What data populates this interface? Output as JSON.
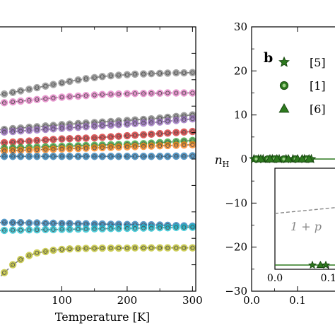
{
  "chart_data": [
    {
      "type": "line",
      "panel_label": "",
      "xlabel": "Temperature [K]",
      "ylabel": "",
      "xlim": [
        0,
        305
      ],
      "ylim": [
        0,
        1
      ],
      "x_ticks": [
        100,
        200,
        300
      ],
      "y_ticks": [],
      "grid": false,
      "line_style": "dashed-gray",
      "series": [
        {
          "color": "#888888",
          "x": [
            0,
            12,
            25,
            37,
            50,
            62,
            75,
            87,
            100,
            112,
            125,
            137,
            150,
            162,
            175,
            187,
            200,
            212,
            225,
            237,
            250,
            262,
            275,
            287,
            300
          ],
          "y": [
            0.74,
            0.746,
            0.752,
            0.758,
            0.764,
            0.77,
            0.776,
            0.782,
            0.788,
            0.794,
            0.799,
            0.804,
            0.808,
            0.812,
            0.815,
            0.817,
            0.819,
            0.821,
            0.822,
            0.823,
            0.824,
            0.825,
            0.826,
            0.826,
            0.827
          ]
        },
        {
          "color": "#e377c2",
          "x": [
            0,
            12,
            25,
            37,
            50,
            62,
            75,
            87,
            100,
            112,
            125,
            137,
            150,
            162,
            175,
            187,
            200,
            212,
            225,
            237,
            250,
            262,
            275,
            287,
            300
          ],
          "y": [
            0.71,
            0.713,
            0.716,
            0.719,
            0.722,
            0.725,
            0.728,
            0.731,
            0.734,
            0.736,
            0.738,
            0.74,
            0.742,
            0.744,
            0.745,
            0.746,
            0.747,
            0.748,
            0.748,
            0.749,
            0.749,
            0.75,
            0.75,
            0.75,
            0.75
          ]
        },
        {
          "color": "#7f7f7f",
          "x": [
            0,
            12,
            25,
            37,
            50,
            62,
            75,
            87,
            100,
            112,
            125,
            137,
            150,
            162,
            175,
            187,
            200,
            212,
            225,
            237,
            250,
            262,
            275,
            287,
            300
          ],
          "y": [
            0.61,
            0.612,
            0.615,
            0.617,
            0.62,
            0.622,
            0.625,
            0.627,
            0.63,
            0.632,
            0.634,
            0.636,
            0.638,
            0.64,
            0.642,
            0.644,
            0.646,
            0.648,
            0.65,
            0.652,
            0.655,
            0.658,
            0.661,
            0.664,
            0.667
          ]
        },
        {
          "color": "#9467bd",
          "x": [
            0,
            12,
            25,
            37,
            50,
            62,
            75,
            87,
            100,
            112,
            125,
            137,
            150,
            162,
            175,
            187,
            200,
            212,
            225,
            237,
            250,
            262,
            275,
            287,
            300
          ],
          "y": [
            0.6,
            0.602,
            0.604,
            0.606,
            0.608,
            0.61,
            0.612,
            0.614,
            0.616,
            0.618,
            0.62,
            0.622,
            0.624,
            0.626,
            0.628,
            0.63,
            0.632,
            0.634,
            0.636,
            0.638,
            0.64,
            0.643,
            0.646,
            0.649,
            0.652
          ]
        },
        {
          "color": "#d62728",
          "x": [
            0,
            12,
            25,
            37,
            50,
            62,
            75,
            87,
            100,
            112,
            125,
            137,
            150,
            162,
            175,
            187,
            200,
            212,
            225,
            237,
            250,
            262,
            275,
            287,
            300
          ],
          "y": [
            0.56,
            0.562,
            0.564,
            0.566,
            0.568,
            0.57,
            0.572,
            0.574,
            0.576,
            0.577,
            0.578,
            0.579,
            0.58,
            0.582,
            0.584,
            0.586,
            0.588,
            0.59,
            0.592,
            0.594,
            0.596,
            0.598,
            0.6,
            0.602,
            0.604
          ]
        },
        {
          "color": "#2ca02c",
          "x": [
            0,
            12,
            25,
            37,
            50,
            62,
            75,
            87,
            100,
            112,
            125,
            137,
            150,
            162,
            175,
            187,
            200,
            212,
            225,
            237,
            250,
            262,
            275,
            287,
            300
          ],
          "y": [
            0.54,
            0.541,
            0.542,
            0.543,
            0.544,
            0.545,
            0.546,
            0.547,
            0.548,
            0.549,
            0.55,
            0.551,
            0.552,
            0.553,
            0.554,
            0.555,
            0.556,
            0.557,
            0.558,
            0.56,
            0.562,
            0.564,
            0.566,
            0.568,
            0.57
          ]
        },
        {
          "color": "#ff7f0e",
          "x": [
            0,
            12,
            25,
            37,
            50,
            62,
            75,
            87,
            100,
            112,
            125,
            137,
            150,
            162,
            175,
            187,
            200,
            212,
            225,
            237,
            250,
            262,
            275,
            287,
            300
          ],
          "y": [
            0.53,
            0.531,
            0.532,
            0.533,
            0.534,
            0.535,
            0.536,
            0.537,
            0.538,
            0.539,
            0.54,
            0.541,
            0.542,
            0.543,
            0.544,
            0.545,
            0.546,
            0.547,
            0.548,
            0.549,
            0.55,
            0.551,
            0.552,
            0.553,
            0.554
          ]
        },
        {
          "color": "#1f77b4",
          "x": [
            0,
            12,
            25,
            37,
            50,
            62,
            75,
            87,
            100,
            112,
            125,
            137,
            150,
            162,
            175,
            187,
            200,
            212,
            225,
            237,
            250,
            262,
            275,
            287,
            300
          ],
          "y": [
            0.51,
            0.51,
            0.51,
            0.51,
            0.51,
            0.51,
            0.51,
            0.51,
            0.51,
            0.51,
            0.51,
            0.51,
            0.51,
            0.51,
            0.51,
            0.51,
            0.51,
            0.51,
            0.51,
            0.51,
            0.51,
            0.51,
            0.511,
            0.511,
            0.512
          ]
        },
        {
          "color": "#1f77b4",
          "x": [
            0,
            12,
            25,
            37,
            50,
            62,
            75,
            87,
            100,
            112,
            125,
            137,
            150,
            162,
            175,
            187,
            200,
            212,
            225,
            237,
            250,
            262,
            275,
            287,
            300
          ],
          "y": [
            0.26,
            0.26,
            0.259,
            0.259,
            0.258,
            0.258,
            0.257,
            0.257,
            0.256,
            0.256,
            0.255,
            0.255,
            0.254,
            0.254,
            0.253,
            0.253,
            0.252,
            0.252,
            0.251,
            0.251,
            0.25,
            0.249,
            0.248,
            0.247,
            0.246
          ]
        },
        {
          "color": "#17becf",
          "x": [
            0,
            12,
            25,
            37,
            50,
            62,
            75,
            87,
            100,
            112,
            125,
            137,
            150,
            162,
            175,
            187,
            200,
            212,
            225,
            237,
            250,
            262,
            275,
            287,
            300
          ],
          "y": [
            0.23,
            0.23,
            0.231,
            0.231,
            0.232,
            0.232,
            0.233,
            0.233,
            0.234,
            0.234,
            0.235,
            0.235,
            0.236,
            0.236,
            0.237,
            0.237,
            0.238,
            0.238,
            0.239,
            0.239,
            0.24,
            0.24,
            0.241,
            0.241,
            0.242
          ]
        },
        {
          "color": "#bcbd22",
          "x": [
            0,
            12,
            25,
            37,
            50,
            62,
            75,
            87,
            100,
            112,
            125,
            137,
            150,
            162,
            175,
            187,
            200,
            212,
            225,
            237,
            250,
            262,
            275,
            287,
            300
          ],
          "y": [
            0.04,
            0.07,
            0.1,
            0.12,
            0.135,
            0.145,
            0.15,
            0.155,
            0.158,
            0.16,
            0.161,
            0.162,
            0.162,
            0.163,
            0.163,
            0.163,
            0.163,
            0.164,
            0.164,
            0.164,
            0.164,
            0.164,
            0.164,
            0.164,
            0.164
          ]
        }
      ]
    },
    {
      "type": "scatter",
      "panel_label": "b",
      "xlabel": "",
      "ylabel_main": "n",
      "ylabel_sub": "H",
      "xlim": [
        0.0,
        0.2
      ],
      "ylim": [
        -30,
        30
      ],
      "x_ticks": [
        0.0,
        0.1
      ],
      "x_tick_labels": [
        "0.0",
        "0.1"
      ],
      "y_ticks": [
        -30,
        -20,
        -10,
        0,
        10,
        20,
        30
      ],
      "y_tick_labels": [
        "−30",
        "−20",
        "−10",
        "0",
        "10",
        "20",
        "30"
      ],
      "grid": false,
      "legend_position": "upper-left",
      "legend": [
        {
          "label": "[5]",
          "marker": "star",
          "color": "#2d7a1e"
        },
        {
          "label": "[1]",
          "marker": "circle",
          "color": "#2d7a1e"
        },
        {
          "label": "[6]",
          "marker": "triangle",
          "color": "#2d7a1e"
        }
      ],
      "series": [
        {
          "name": "[5]",
          "marker": "star",
          "x": [
            0.005,
            0.015,
            0.025,
            0.045,
            0.06,
            0.075,
            0.09,
            0.115,
            0.13
          ],
          "y": [
            0,
            0,
            0,
            0,
            0,
            0,
            0,
            0,
            0
          ]
        },
        {
          "name": "[1]",
          "marker": "circle",
          "x": [
            0.01,
            0.035,
            0.05,
            0.07,
            0.095,
            0.12
          ],
          "y": [
            0,
            0,
            0,
            0,
            0,
            0
          ]
        },
        {
          "name": "[6]",
          "marker": "triangle",
          "x": [
            0.02,
            0.04,
            0.055,
            0.08,
            0.1,
            0.11,
            0.125
          ],
          "y": [
            0,
            0,
            0,
            0,
            0,
            0,
            0
          ]
        }
      ],
      "inset": {
        "xlim": [
          0.0,
          0.1
        ],
        "ylim": [
          0.0,
          1.0
        ],
        "x_tick_labels": [
          "0.0",
          "0.1"
        ],
        "annotation": "1 + p",
        "line": {
          "x": [
            0.0,
            0.2
          ],
          "y": [
            1.0,
            1.2
          ]
        },
        "markers": [
          {
            "marker": "star",
            "x": 0.07,
            "y": 0.0
          },
          {
            "marker": "triangle",
            "x": 0.085,
            "y": 0.0
          },
          {
            "marker": "star",
            "x": 0.095,
            "y": 0.0
          }
        ]
      }
    }
  ]
}
